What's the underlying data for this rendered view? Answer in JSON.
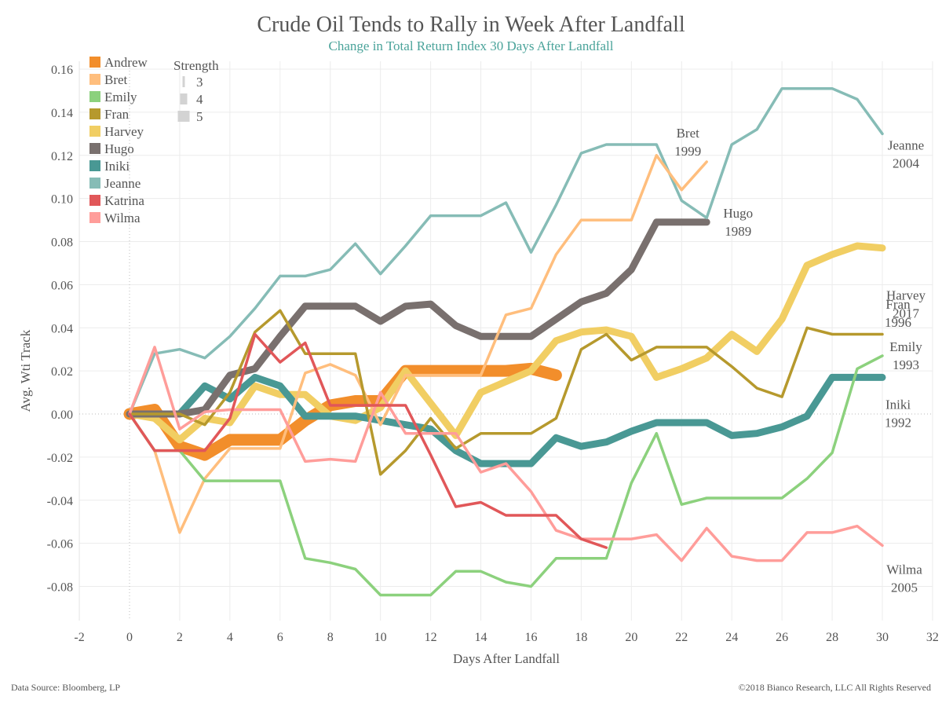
{
  "footer": {
    "source": "Data Source: Bloomberg, LP",
    "copyright": "©2018 Bianco Research, LLC All Rights Reserved"
  },
  "chart_data": {
    "type": "line",
    "title": "Crude Oil Tends to Rally in Week After Landfall",
    "subtitle": "Change in Total Return Index 30 Days After Landfall",
    "xlabel": "Days After Landfall",
    "ylabel": "Avg. Wti Track",
    "xlim": [
      -2,
      32
    ],
    "ylim": [
      -0.08,
      0.16
    ],
    "xticks": [
      -2,
      0,
      2,
      4,
      6,
      8,
      10,
      12,
      14,
      16,
      18,
      20,
      22,
      24,
      26,
      28,
      30,
      32
    ],
    "yticks": [
      -0.08,
      -0.06,
      -0.04,
      -0.02,
      0.0,
      0.02,
      0.04,
      0.06,
      0.08,
      0.1,
      0.12,
      0.14,
      0.16
    ],
    "ytick_labels": [
      "-0.08",
      "-0.06",
      "-0.04",
      "-0.02",
      "0.00",
      "0.02",
      "0.04",
      "0.06",
      "0.08",
      "0.10",
      "0.12",
      "0.14",
      "0.16"
    ],
    "grid": true,
    "legend": {
      "position": "top-left",
      "color_title": "",
      "size_title": "Strength",
      "size_levels": [
        3,
        4,
        5
      ]
    },
    "series": [
      {
        "name": "Andrew",
        "color": "#f28e2b",
        "strength": 5,
        "end_label": "",
        "values": [
          0,
          0.002,
          -0.015,
          -0.019,
          -0.012,
          -0.012,
          -0.012,
          -0.003,
          0.004,
          0.006,
          0.006,
          0.02,
          0.02,
          0.02,
          0.02,
          0.02,
          0.021,
          0.018
        ]
      },
      {
        "name": "Bret",
        "color": "#ffbe7d",
        "strength": 3,
        "end_label": "Bret",
        "end_label_year": "1999",
        "values": [
          0,
          -0.017,
          -0.055,
          -0.03,
          -0.016,
          -0.016,
          -0.016,
          0.019,
          0.023,
          0.018,
          -0.005,
          0.018,
          0.018,
          0.018,
          0.018,
          0.046,
          0.049,
          0.074,
          0.09,
          0.09,
          0.09,
          0.12,
          0.104,
          0.117
        ]
      },
      {
        "name": "Emily",
        "color": "#8cd17d",
        "strength": 3,
        "end_label": "Emily",
        "end_label_year": "1993",
        "values": [
          0,
          -0.017,
          -0.017,
          -0.031,
          -0.031,
          -0.031,
          -0.031,
          -0.067,
          -0.069,
          -0.072,
          -0.084,
          -0.084,
          -0.084,
          -0.073,
          -0.073,
          -0.078,
          -0.08,
          -0.067,
          -0.067,
          -0.067,
          -0.032,
          -0.009,
          -0.042,
          -0.039,
          -0.039,
          -0.039,
          -0.039,
          -0.03,
          -0.018,
          0.021,
          0.027
        ]
      },
      {
        "name": "Fran",
        "color": "#b6992d",
        "strength": 3,
        "end_label": "Fran",
        "end_label_year": "1996",
        "values": [
          0,
          0,
          0,
          -0.005,
          0.01,
          0.038,
          0.048,
          0.028,
          0.028,
          0.028,
          -0.028,
          -0.017,
          -0.002,
          -0.016,
          -0.009,
          -0.009,
          -0.009,
          -0.002,
          0.03,
          0.037,
          0.025,
          0.031,
          0.031,
          0.031,
          0.022,
          0.012,
          0.008,
          0.04,
          0.037,
          0.037,
          0.037
        ]
      },
      {
        "name": "Harvey",
        "color": "#f1ce63",
        "strength": 4,
        "end_label": "Harvey",
        "end_label_year": "2017",
        "values": [
          0,
          -0.002,
          -0.012,
          -0.002,
          -0.004,
          0.013,
          0.009,
          0.009,
          -0.001,
          -0.003,
          0.003,
          0.02,
          0.005,
          -0.01,
          0.01,
          0.015,
          0.02,
          0.034,
          0.038,
          0.039,
          0.036,
          0.017,
          0.021,
          0.026,
          0.037,
          0.029,
          0.044,
          0.069,
          0.074,
          0.078,
          0.077
        ]
      },
      {
        "name": "Hugo",
        "color": "#79706e",
        "strength": 4,
        "end_label": "Hugo",
        "end_label_year": "1989",
        "values": [
          0,
          0,
          0,
          0.002,
          0.018,
          0.021,
          0.036,
          0.05,
          0.05,
          0.05,
          0.043,
          0.05,
          0.051,
          0.041,
          0.036,
          0.036,
          0.036,
          0.044,
          0.052,
          0.056,
          0.067,
          0.089,
          0.089,
          0.089
        ]
      },
      {
        "name": "Iniki",
        "color": "#499894",
        "strength": 4,
        "end_label": "Iniki",
        "end_label_year": "1992",
        "values": [
          0,
          0,
          0,
          0.013,
          0.007,
          0.017,
          0.013,
          -0.001,
          -0.001,
          -0.001,
          -0.003,
          -0.005,
          -0.007,
          -0.017,
          -0.023,
          -0.023,
          -0.023,
          -0.011,
          -0.015,
          -0.013,
          -0.008,
          -0.004,
          -0.004,
          -0.004,
          -0.01,
          -0.009,
          -0.006,
          -0.001,
          0.017,
          0.017,
          0.017
        ]
      },
      {
        "name": "Jeanne",
        "color": "#86bcb6",
        "strength": 3,
        "end_label": "Jeanne",
        "end_label_year": "2004",
        "values": [
          0,
          0.028,
          0.03,
          0.026,
          0.036,
          0.049,
          0.064,
          0.064,
          0.067,
          0.079,
          0.065,
          0.078,
          0.092,
          0.092,
          0.092,
          0.098,
          0.075,
          0.097,
          0.121,
          0.125,
          0.125,
          0.125,
          0.099,
          0.091,
          0.125,
          0.132,
          0.151,
          0.151,
          0.151,
          0.146,
          0.13
        ]
      },
      {
        "name": "Katrina",
        "color": "#e15759",
        "strength": 3,
        "end_label": "",
        "values": [
          0,
          -0.017,
          -0.017,
          -0.017,
          -0.002,
          0.037,
          0.024,
          0.033,
          0.004,
          0.004,
          0.004,
          0.004,
          -0.019,
          -0.043,
          -0.041,
          -0.047,
          -0.047,
          -0.047,
          -0.058,
          -0.062
        ]
      },
      {
        "name": "Wilma",
        "color": "#ff9d9a",
        "strength": 3,
        "end_label": "Wilma",
        "end_label_year": "2005",
        "values": [
          0,
          0.031,
          -0.007,
          0.001,
          0.002,
          0.002,
          0.002,
          -0.022,
          -0.021,
          -0.022,
          0.01,
          -0.009,
          -0.009,
          -0.009,
          -0.027,
          -0.023,
          -0.036,
          -0.054,
          -0.058,
          -0.058,
          -0.058,
          -0.056,
          -0.068,
          -0.053,
          -0.066,
          -0.068,
          -0.068,
          -0.055,
          -0.055,
          -0.052,
          -0.061
        ]
      }
    ]
  }
}
